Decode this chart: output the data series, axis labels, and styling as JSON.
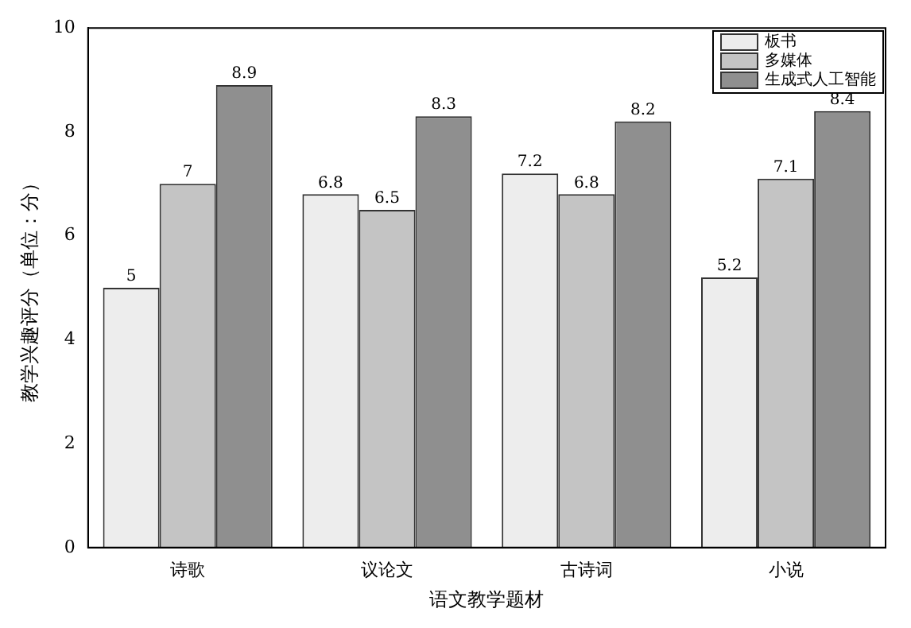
{
  "chart_data": {
    "type": "bar",
    "xlabel": "语文教学题材",
    "ylabel": "教学兴趣评分（单位：分）",
    "categories": [
      "诗歌",
      "议论文",
      "古诗词",
      "小说"
    ],
    "series": [
      {
        "name": "板书",
        "color": "#ededed",
        "values": [
          5,
          6.8,
          7.2,
          5.2
        ]
      },
      {
        "name": "多媒体",
        "color": "#c4c4c4",
        "values": [
          7,
          6.5,
          6.8,
          7.1
        ]
      },
      {
        "name": "生成式人工智能",
        "color": "#8f8f8f",
        "values": [
          8.9,
          8.3,
          8.2,
          8.4
        ]
      }
    ],
    "ylim": [
      0,
      10
    ],
    "yticks": [
      0,
      2,
      4,
      6,
      8,
      10
    ],
    "grid": false,
    "legend": "top right",
    "data_labels": true
  }
}
